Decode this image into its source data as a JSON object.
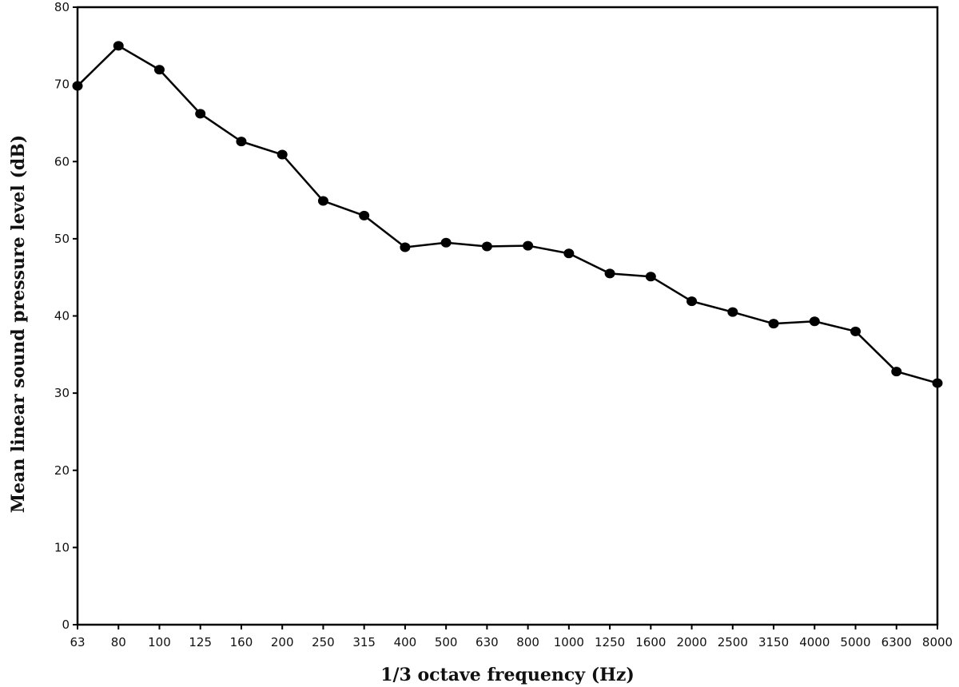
{
  "chart_data": {
    "type": "line",
    "title": "",
    "xlabel": "1/3 octave frequency (Hz)",
    "ylabel": "Mean linear sound pressure level (dB)",
    "categories": [
      "63",
      "80",
      "100",
      "125",
      "160",
      "200",
      "250",
      "315",
      "400",
      "500",
      "630",
      "800",
      "1000",
      "1250",
      "1600",
      "2000",
      "2500",
      "3150",
      "4000",
      "5000",
      "6300",
      "8000"
    ],
    "series": [
      {
        "values": [
          69.8,
          75.0,
          71.9,
          66.2,
          62.6,
          60.9,
          54.9,
          53.0,
          48.9,
          49.5,
          49.0,
          49.1,
          48.1,
          45.5,
          45.1,
          41.9,
          40.5,
          39.0,
          39.3,
          38.0,
          32.8,
          31.3
        ]
      }
    ],
    "ylim": [
      0,
      80
    ],
    "yticks": [
      0,
      10,
      20,
      30,
      40,
      50,
      60,
      70,
      80
    ],
    "grid": false,
    "legend": "none",
    "colors": {
      "line": "#000000",
      "marker": "#000000",
      "axis": "#000000"
    }
  }
}
